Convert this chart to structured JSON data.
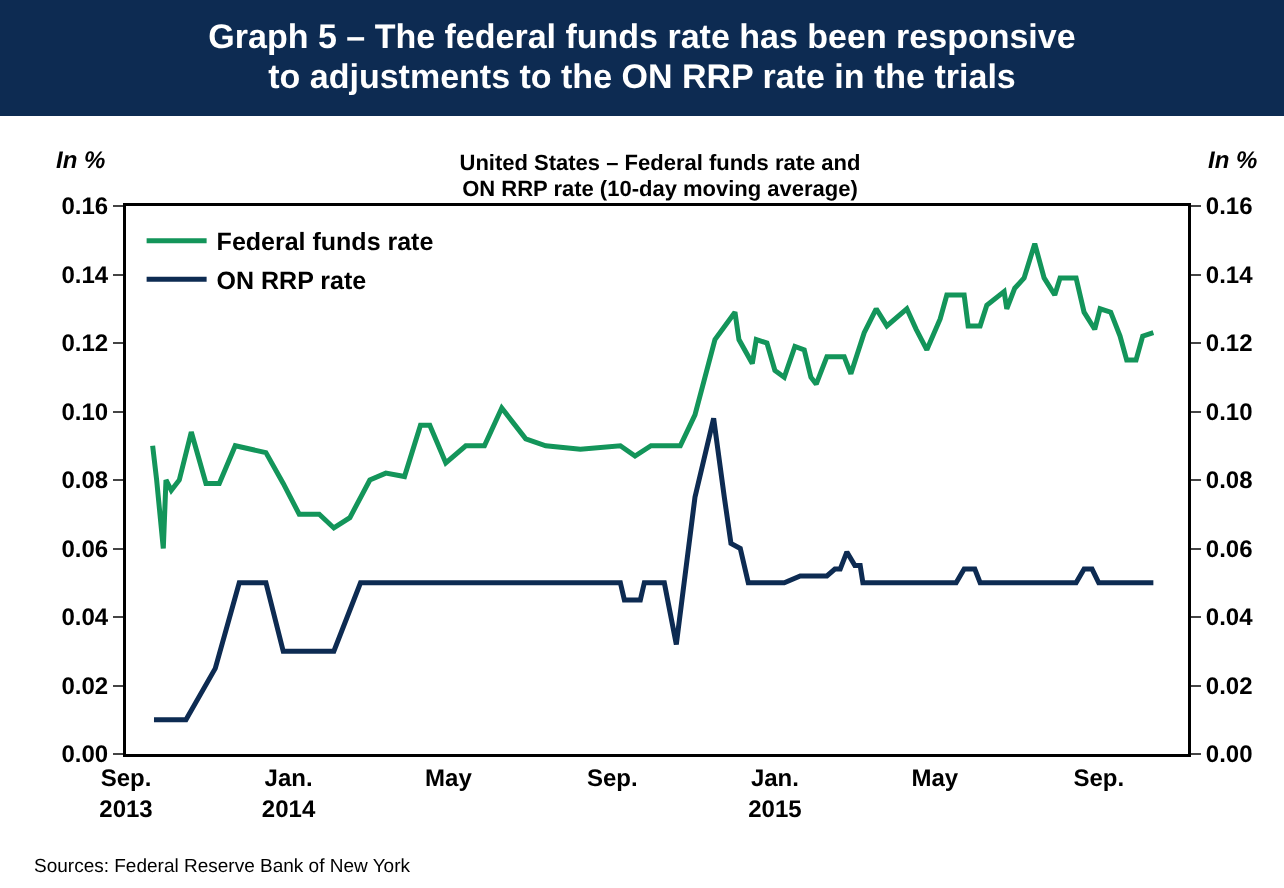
{
  "chart_data": {
    "type": "line",
    "title": "Graph 5 – The federal funds rate has been responsive to adjustments to the ON RRP rate in the trials",
    "subtitle": "United States – Federal funds rate and ON RRP rate (10-day moving average)",
    "ylabel": "In %",
    "y2label": "In %",
    "annotations": [
      "Sources: Federal Reserve Bank of New York"
    ],
    "xlim": [
      "2013-09-01",
      "2015-11-07"
    ],
    "xticks": [
      {
        "value": "2013-09-01",
        "label": "Sep.\n2013"
      },
      {
        "value": "2014-01-01",
        "label": "Jan.\n2014"
      },
      {
        "value": "2014-05-01",
        "label": "May"
      },
      {
        "value": "2014-09-01",
        "label": "Sep."
      },
      {
        "value": "2015-01-01",
        "label": "Jan.\n2015"
      },
      {
        "value": "2015-05-01",
        "label": "May"
      },
      {
        "value": "2015-09-01",
        "label": "Sep."
      }
    ],
    "ylim": [
      0,
      0.16
    ],
    "yticks": [
      {
        "value": 0,
        "label": "0.00"
      },
      {
        "value": 0.02,
        "label": "0.02"
      },
      {
        "value": 0.04,
        "label": "0.04"
      },
      {
        "value": 0.06,
        "label": "0.06"
      },
      {
        "value": 0.08,
        "label": "0.08"
      },
      {
        "value": 0.1,
        "label": "0.10"
      },
      {
        "value": 0.12,
        "label": "0.12"
      },
      {
        "value": 0.14,
        "label": "0.14"
      },
      {
        "value": 0.16,
        "label": "0.16"
      }
    ],
    "y2lim": [
      0,
      0.16
    ],
    "y2ticks": [
      {
        "value": 0,
        "label": "0.00"
      },
      {
        "value": 0.02,
        "label": "0.02"
      },
      {
        "value": 0.04,
        "label": "0.04"
      },
      {
        "value": 0.06,
        "label": "0.06"
      },
      {
        "value": 0.08,
        "label": "0.08"
      },
      {
        "value": 0.1,
        "label": "0.10"
      },
      {
        "value": 0.12,
        "label": "0.12"
      },
      {
        "value": 0.14,
        "label": "0.14"
      },
      {
        "value": 0.16,
        "label": "0.16"
      }
    ],
    "grid": false,
    "legend": "top left",
    "marker": "none",
    "line_style": "solid",
    "series": [
      {
        "name": "Federal funds rate",
        "color": "#13955a",
        "x": [
          "2013-09-21",
          "2013-09-24",
          "2013-09-29",
          "2013-10-01",
          "2013-10-05",
          "2013-10-11",
          "2013-10-20",
          "2013-10-31",
          "2013-11-10",
          "2013-11-22",
          "2013-12-15",
          "2013-12-28",
          "2014-01-09",
          "2014-01-24",
          "2014-02-04",
          "2014-02-16",
          "2014-03-03",
          "2014-03-15",
          "2014-03-29",
          "2014-04-10",
          "2014-04-17",
          "2014-04-29",
          "2014-05-14",
          "2014-05-28",
          "2014-06-10",
          "2014-06-28",
          "2014-07-13",
          "2014-08-08",
          "2014-09-07",
          "2014-09-18",
          "2014-09-30",
          "2014-10-22",
          "2014-11-02",
          "2014-11-17",
          "2014-12-02",
          "2014-12-05",
          "2014-12-15",
          "2014-12-18",
          "2014-12-26",
          "2015-01-01",
          "2015-01-08",
          "2015-01-16",
          "2015-01-23",
          "2015-01-28",
          "2015-02-01",
          "2015-02-09",
          "2015-02-22",
          "2015-02-27",
          "2015-03-09",
          "2015-03-18",
          "2015-03-26",
          "2015-04-10",
          "2015-04-17",
          "2015-04-25",
          "2015-05-05",
          "2015-05-10",
          "2015-05-23",
          "2015-05-26",
          "2015-06-04",
          "2015-06-09",
          "2015-06-22",
          "2015-06-24",
          "2015-06-30",
          "2015-07-07",
          "2015-07-15",
          "2015-07-22",
          "2015-07-30",
          "2015-08-03",
          "2015-08-15",
          "2015-08-21",
          "2015-08-29",
          "2015-09-02",
          "2015-09-10",
          "2015-09-17",
          "2015-09-22",
          "2015-09-29",
          "2015-10-04",
          "2015-10-12"
        ],
        "values": [
          0.09,
          0.08,
          0.06,
          0.08,
          0.077,
          0.08,
          0.094,
          0.079,
          0.079,
          0.09,
          0.088,
          0.079,
          0.07,
          0.07,
          0.066,
          0.069,
          0.08,
          0.082,
          0.081,
          0.096,
          0.096,
          0.085,
          0.09,
          0.09,
          0.101,
          0.092,
          0.09,
          0.089,
          0.09,
          0.087,
          0.09,
          0.09,
          0.099,
          0.121,
          0.129,
          0.121,
          0.114,
          0.121,
          0.12,
          0.112,
          0.11,
          0.119,
          0.118,
          0.11,
          0.108,
          0.116,
          0.116,
          0.111,
          0.123,
          0.13,
          0.125,
          0.13,
          0.124,
          0.118,
          0.127,
          0.134,
          0.134,
          0.125,
          0.125,
          0.131,
          0.135,
          0.13,
          0.136,
          0.139,
          0.149,
          0.139,
          0.134,
          0.139,
          0.139,
          0.129,
          0.124,
          0.13,
          0.129,
          0.122,
          0.115,
          0.115,
          0.122,
          0.123
        ]
      },
      {
        "name": "ON RRP rate",
        "color": "#0d2b52",
        "x": [
          "2013-09-22",
          "2013-10-16",
          "2013-11-07",
          "2013-11-25",
          "2013-12-15",
          "2013-12-28",
          "2014-02-04",
          "2014-02-24",
          "2014-09-07",
          "2014-09-10",
          "2014-09-22",
          "2014-09-25",
          "2014-10-10",
          "2014-10-19",
          "2014-11-02",
          "2014-11-16",
          "2014-11-24",
          "2014-11-29",
          "2014-12-06",
          "2014-12-12",
          "2015-01-08",
          "2015-01-20",
          "2015-02-09",
          "2015-02-15",
          "2015-02-19",
          "2015-02-24",
          "2015-03-02",
          "2015-03-06",
          "2015-03-08",
          "2015-05-17",
          "2015-05-23",
          "2015-05-31",
          "2015-06-04",
          "2015-08-15",
          "2015-08-21",
          "2015-08-27",
          "2015-09-01",
          "2015-10-12"
        ],
        "values": [
          0.01,
          0.01,
          0.025,
          0.05,
          0.05,
          0.03,
          0.03,
          0.05,
          0.05,
          0.045,
          0.045,
          0.05,
          0.05,
          0.032,
          0.075,
          0.098,
          0.075,
          0.0615,
          0.06,
          0.05,
          0.05,
          0.052,
          0.052,
          0.054,
          0.054,
          0.059,
          0.055,
          0.055,
          0.05,
          0.05,
          0.054,
          0.054,
          0.05,
          0.05,
          0.054,
          0.054,
          0.05,
          0.05
        ]
      }
    ]
  }
}
